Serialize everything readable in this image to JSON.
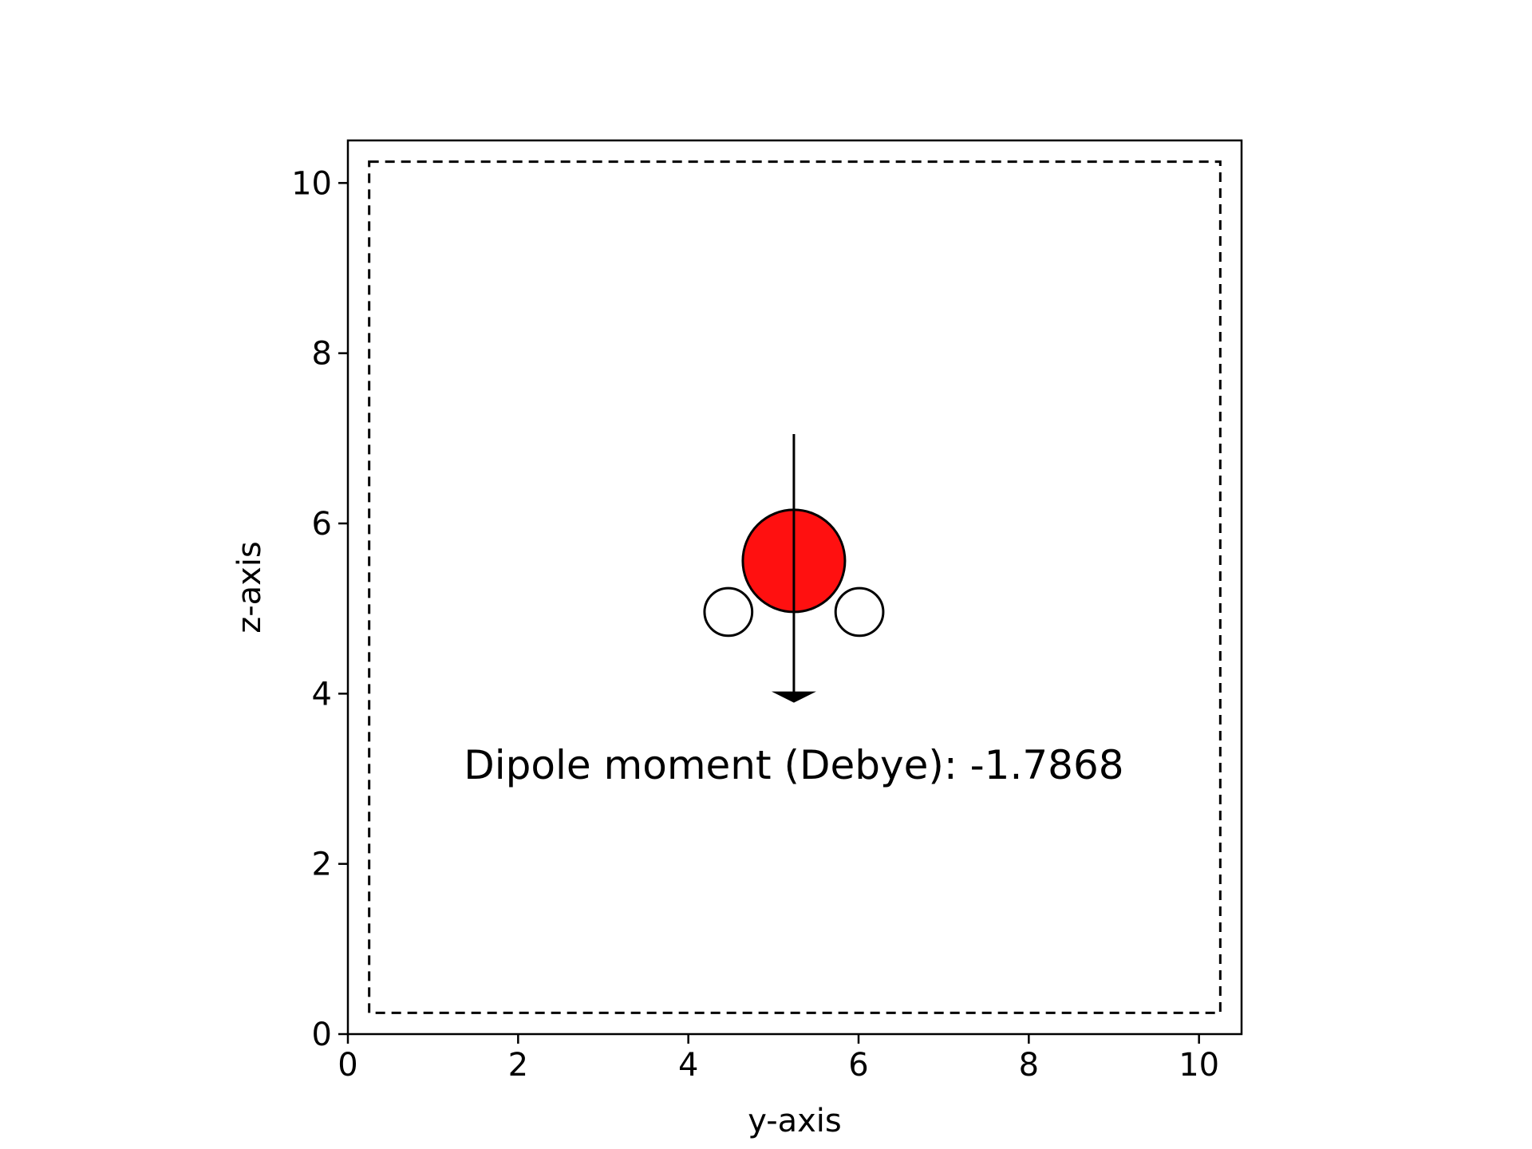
{
  "chart_data": {
    "type": "scatter",
    "xlabel": "y-axis",
    "ylabel": "z-axis",
    "xlim": [
      0,
      10.5
    ],
    "ylim": [
      0,
      10.5
    ],
    "xticks": [
      "0",
      "2",
      "4",
      "6",
      "8",
      "10"
    ],
    "yticks": [
      "0",
      "2",
      "4",
      "6",
      "8",
      "10"
    ],
    "grid": false,
    "aspect": "equal",
    "box": {
      "y_min": 0.25,
      "y_max": 10.25,
      "z_min": 0.25,
      "z_max": 10.25,
      "style": "dashed"
    },
    "atoms": [
      {
        "element": "O",
        "y": 5.24,
        "z": 5.56,
        "radius": 0.6,
        "color": "#ff1010"
      },
      {
        "element": "H",
        "y": 4.47,
        "z": 4.96,
        "radius": 0.28,
        "color": "#ffffff"
      },
      {
        "element": "H",
        "y": 6.01,
        "z": 4.96,
        "radius": 0.28,
        "color": "#ffffff"
      }
    ],
    "dipole_arrow": {
      "y": 5.24,
      "z_start": 7.05,
      "z_end": 3.95
    },
    "annotation": {
      "text": "Dipole moment (Debye): -1.7868",
      "y": 5.24,
      "z": 3.0
    }
  }
}
